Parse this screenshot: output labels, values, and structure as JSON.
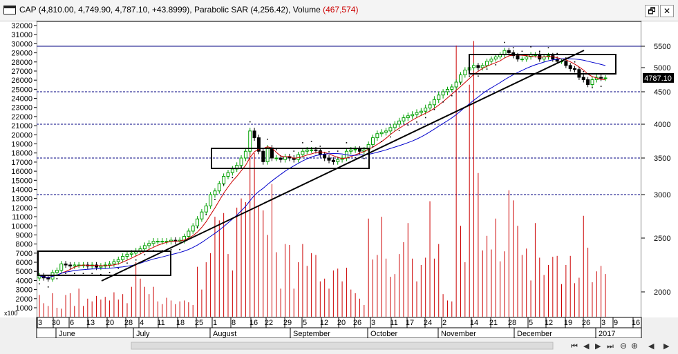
{
  "window": {
    "title_prefix": "CAP (4,810.00, 4,749.90, 4,787.10, +43.8999), Parabolic SAR (4,256.42), Volume ",
    "title_volume": "(467,574)",
    "restore_label": "🗗",
    "close_label": "✕"
  },
  "colors": {
    "up_candle": "#00a000",
    "down_candle": "#000000",
    "volume_bar": "#cc0000",
    "ma_short": "#cc0000",
    "ma_long": "#0000cc",
    "trendline": "#000000",
    "hline": "#000080",
    "background": "#ffffff"
  },
  "chart_data": {
    "type": "candlestick",
    "symbol": "CAP",
    "price_axis_right": {
      "ticks": [
        "5500",
        "5000",
        "4500",
        "4000",
        "3500",
        "3000",
        "2500",
        "2000"
      ],
      "scale": "log"
    },
    "volume_axis_left": {
      "ticks": [
        "32000",
        "31000",
        "30000",
        "29000",
        "28000",
        "27000",
        "26000",
        "25000",
        "24000",
        "23000",
        "22000",
        "21000",
        "20000",
        "19000",
        "18000",
        "17000",
        "16000",
        "15000",
        "14000",
        "13000",
        "12000",
        "11000",
        "10000",
        "9000",
        "8000",
        "7000",
        "6000",
        "5000",
        "4000",
        "3000",
        "2000",
        "1000"
      ],
      "multiplier_label": "x100"
    },
    "x_axis": {
      "day_ticks": [
        "3",
        "30",
        "6",
        "13",
        "20",
        "28",
        "4",
        "11",
        "18",
        "25",
        "1",
        "8",
        "16",
        "22",
        "29",
        "5",
        "12",
        "20",
        "26",
        "3",
        "11",
        "17",
        "24",
        "2",
        "14",
        "21",
        "28",
        "5",
        "12",
        "19",
        "26",
        "3",
        "9",
        "16"
      ],
      "month_labels": [
        "June",
        "July",
        "August",
        "September",
        "October",
        "November",
        "December",
        "2017"
      ]
    },
    "last_price_label": "4787.10",
    "horizontal_lines_price": [
      5500,
      4500,
      4000,
      3500,
      3000
    ],
    "parabolic_sar_last": 4256.42,
    "volume_last": 467574,
    "close_approx": [
      2150,
      2130,
      2120,
      2180,
      2200,
      2260,
      2250,
      2240,
      2250,
      2250,
      2250,
      2240,
      2250,
      2230,
      2240,
      2250,
      2260,
      2280,
      2300,
      2330,
      2350,
      2360,
      2380,
      2400,
      2430,
      2450,
      2470,
      2470,
      2470,
      2470,
      2480,
      2470,
      2480,
      2520,
      2580,
      2640,
      2720,
      2800,
      2870,
      3000,
      3050,
      3150,
      3250,
      3300,
      3350,
      3400,
      3500,
      3600,
      3900,
      3800,
      3600,
      3450,
      3650,
      3500,
      3500,
      3480,
      3520,
      3500,
      3480,
      3550,
      3600,
      3620,
      3620,
      3610,
      3550,
      3500,
      3470,
      3450,
      3480,
      3500,
      3600,
      3620,
      3630,
      3600,
      3620,
      3700,
      3800,
      3860,
      3880,
      3900,
      3950,
      4000,
      4050,
      4100,
      4130,
      4150,
      4180,
      4200,
      4250,
      4300,
      4380,
      4450,
      4500,
      4550,
      4600,
      4700,
      4850,
      4950,
      5000,
      5050,
      5000,
      5050,
      5150,
      5200,
      5250,
      5300,
      5400,
      5350,
      5280,
      5200,
      5200,
      5250,
      5300,
      5300,
      5200,
      5250,
      5280,
      5200,
      5150,
      5150,
      5050,
      4980,
      4960,
      4800,
      4750,
      4650,
      4750,
      4800,
      4780,
      4787
    ],
    "volume_approx": [
      2400,
      1500,
      1200,
      2600,
      1000,
      900,
      2400,
      2600,
      1200,
      3100,
      1200,
      2000,
      1700,
      2300,
      1900,
      2200,
      1800,
      2700,
      1900,
      2500,
      1500,
      3300,
      6000,
      4200,
      3300,
      2500,
      3300,
      1700,
      1400,
      2100,
      1800,
      1400,
      1700,
      1800,
      1600,
      1300,
      5500,
      3000,
      6000,
      7000,
      11000,
      10600,
      11400,
      6900,
      5100,
      12000,
      13000,
      12600,
      20000,
      18000,
      12200,
      11700,
      9000,
      14600,
      7100,
      3100,
      8000,
      7900,
      3100,
      6000,
      8000,
      5600,
      7000,
      6800,
      3900,
      4200,
      3100,
      5100,
      5300,
      3900,
      5400,
      3000,
      2600,
      2000,
      1300,
      10800,
      6300,
      6800,
      11000,
      6400,
      4400,
      4700,
      6900,
      8200,
      10300,
      6400,
      3900,
      5700,
      6500,
      12700,
      6400,
      8000,
      2500,
      1800,
      1700,
      29800,
      10000,
      6000,
      25500,
      30300,
      15800,
      7300,
      8900,
      7400,
      10800,
      6100,
      7200,
      13900,
      12800,
      10000,
      6800,
      7500,
      4000,
      10300,
      6500,
      4600,
      5700,
      6600,
      6700,
      3600,
      5700,
      6700,
      3700,
      4300,
      11100,
      7600,
      3800,
      5000,
      5600,
      4700
    ]
  }
}
